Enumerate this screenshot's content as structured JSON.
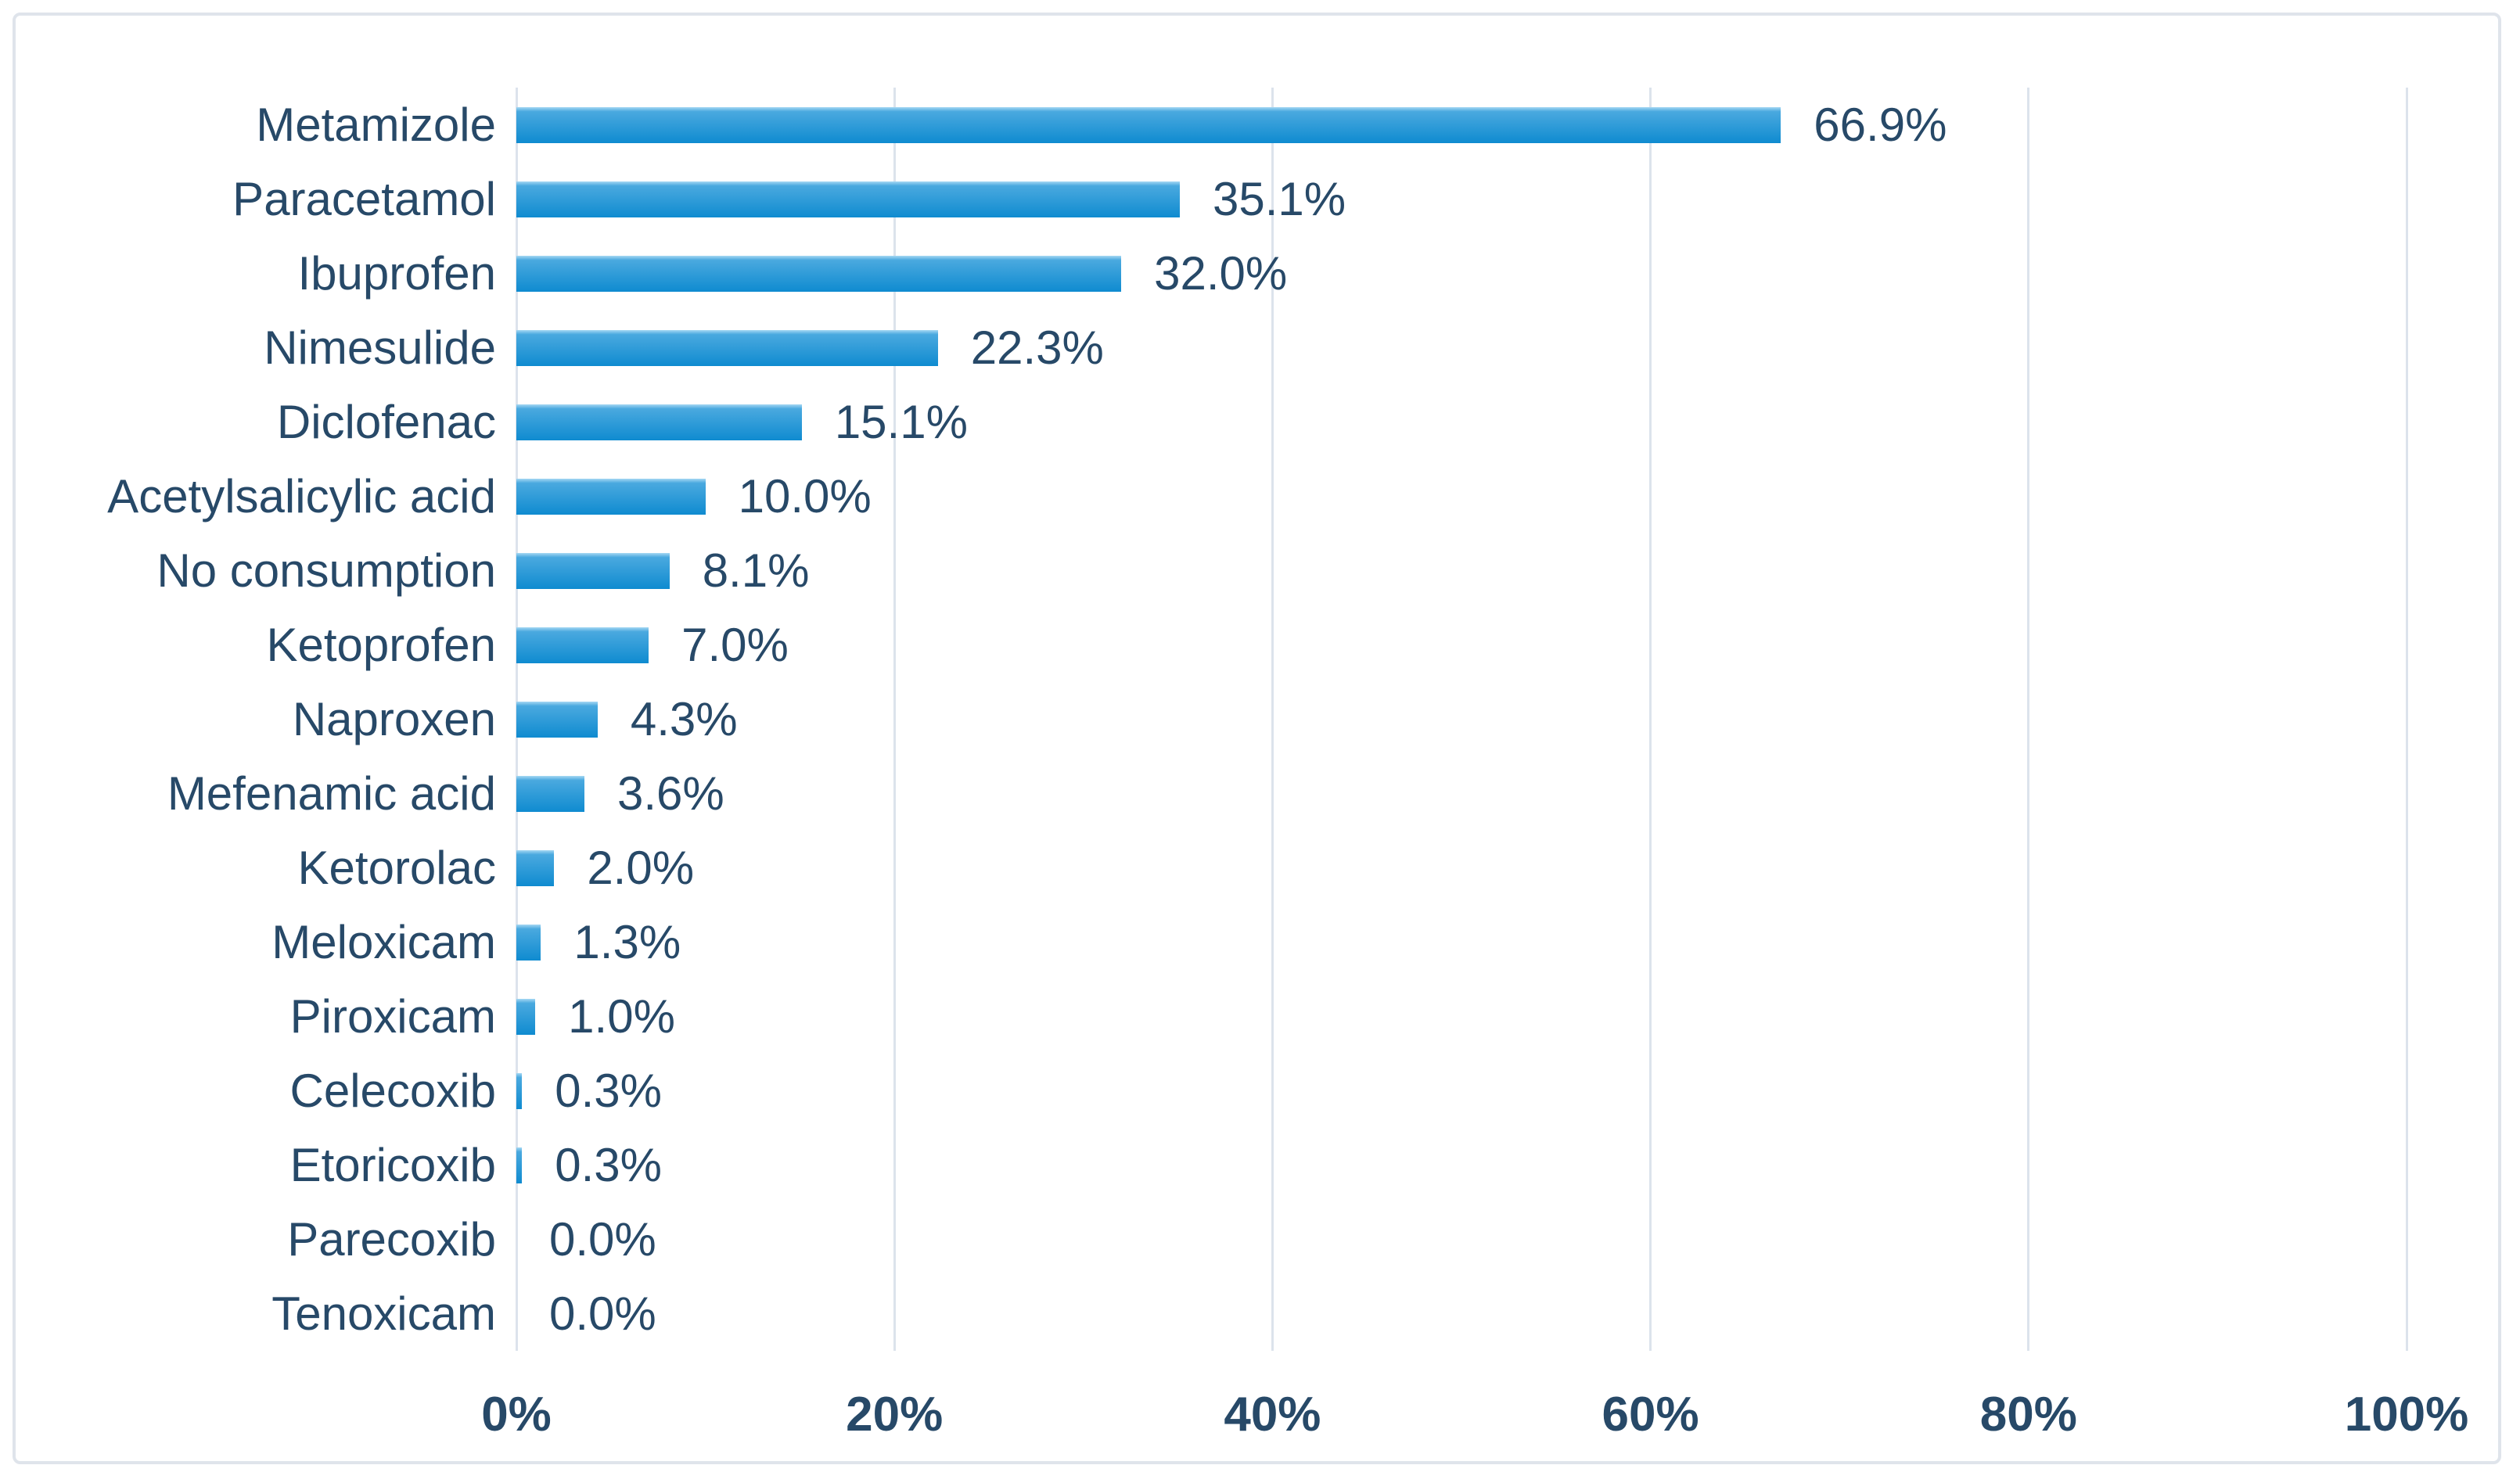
{
  "chart_data": {
    "type": "bar",
    "orientation": "horizontal",
    "title": "",
    "categories": [
      "Metamizole",
      "Paracetamol",
      "Ibuprofen",
      "Nimesulide",
      "Diclofenac",
      "Acetylsalicylic acid",
      "No consumption",
      "Ketoprofen",
      "Naproxen",
      "Mefenamic acid",
      "Ketorolac",
      "Meloxicam",
      "Piroxicam",
      "Celecoxib",
      "Etoricoxib",
      "Parecoxib",
      "Tenoxicam"
    ],
    "values": [
      66.9,
      35.1,
      32.0,
      22.3,
      15.1,
      10.0,
      8.1,
      7.0,
      4.3,
      3.6,
      2.0,
      1.3,
      1.0,
      0.3,
      0.3,
      0.0,
      0.0
    ],
    "value_labels": [
      "66.9%",
      "35.1%",
      "32.0%",
      "22.3%",
      "15.1%",
      "10.0%",
      "8.1%",
      "7.0%",
      "4.3%",
      "3.6%",
      "2.0%",
      "1.3%",
      "1.0%",
      "0.3%",
      "0.3%",
      "0.0%",
      "0.0%"
    ],
    "x_tick_labels": [
      "0%",
      "20%",
      "40%",
      "60%",
      "80%",
      "100%"
    ],
    "x_tick_values": [
      0,
      20,
      40,
      60,
      80,
      100
    ],
    "xlim": [
      0,
      100
    ],
    "grid": "vertical",
    "legend": "none",
    "xlabel": "",
    "ylabel": "",
    "colors": {
      "bar_highlight": "#a6d8f3",
      "bar_top": "#4aa9df",
      "bar_bottom": "#0f8bd0",
      "text": "#274968",
      "gridline": "#dce3ec",
      "frame_border": "#dfe4eb",
      "background": "#ffffff"
    }
  }
}
